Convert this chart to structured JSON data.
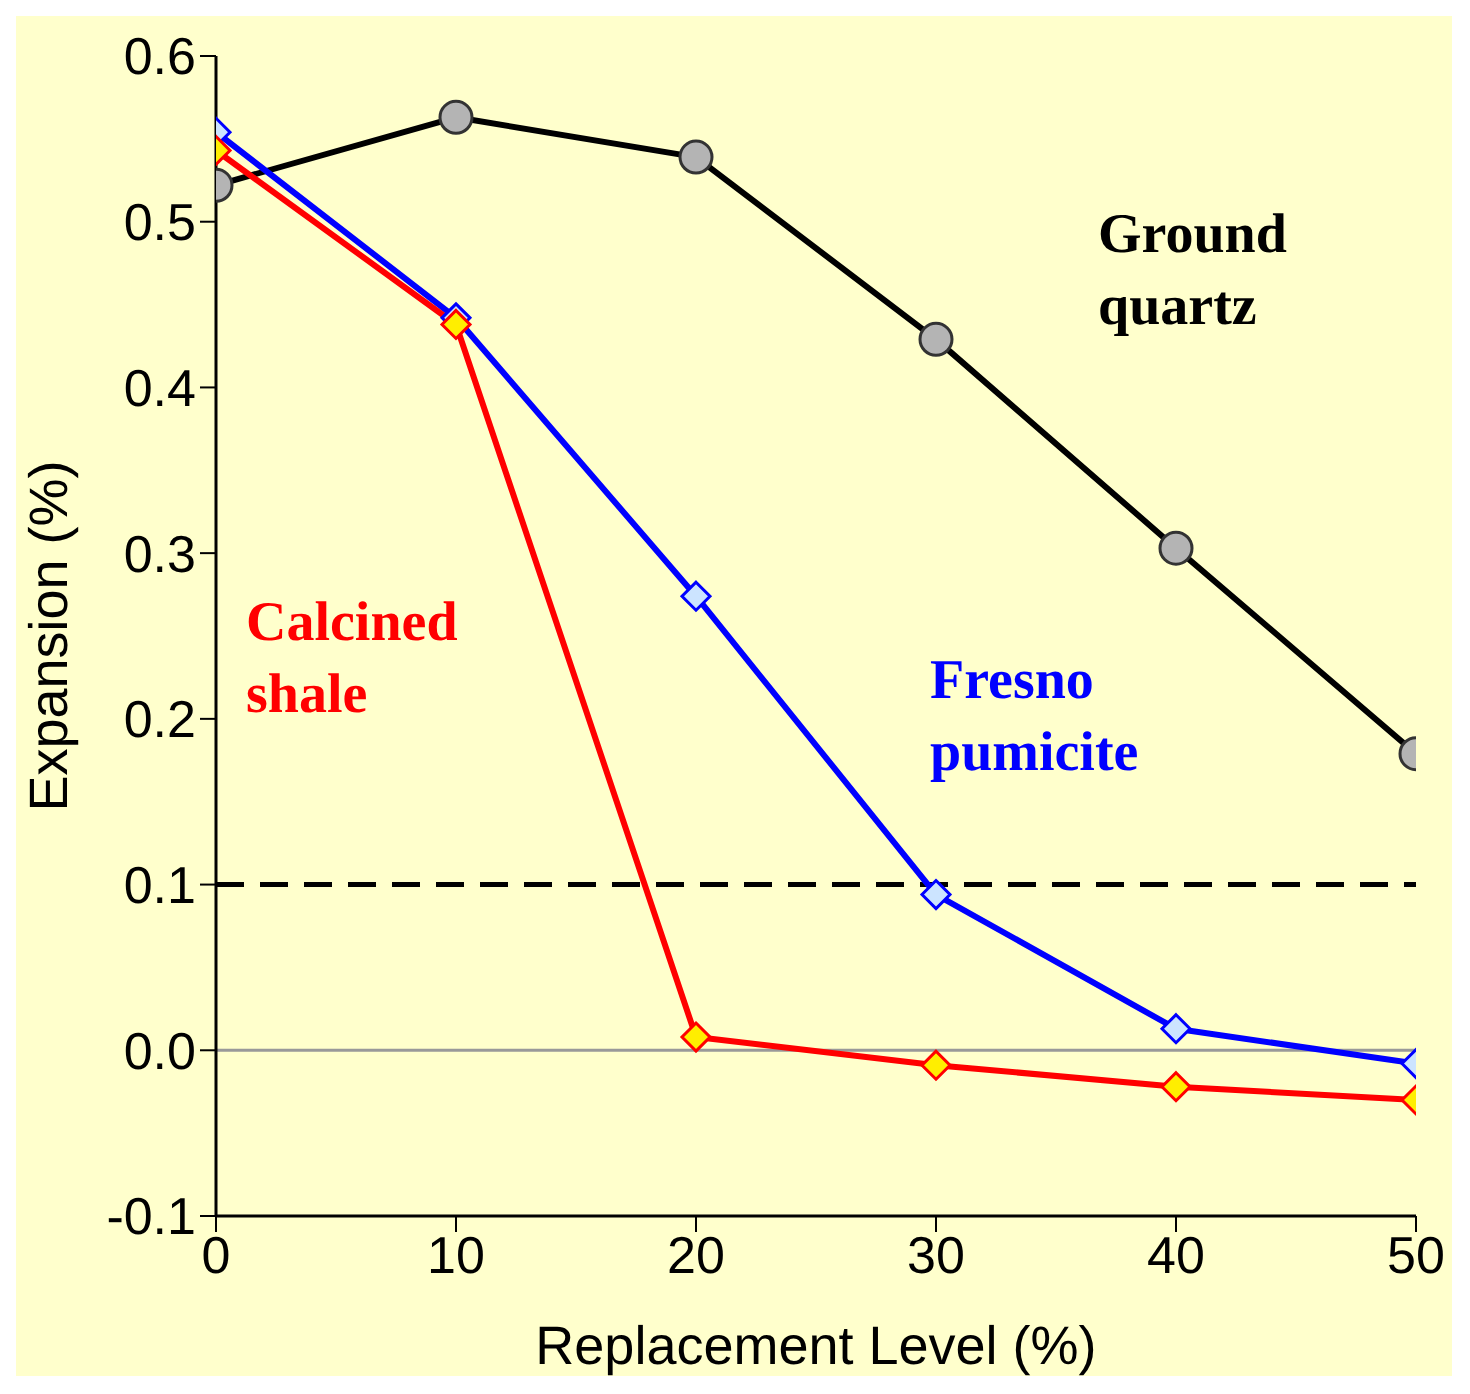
{
  "chart_data": {
    "type": "line",
    "xlabel": "Replacement Level (%)",
    "ylabel": "Expansion (%)",
    "x": [
      0,
      10,
      20,
      30,
      40,
      50
    ],
    "series": [
      {
        "name": "Ground quartz",
        "color": "#000000",
        "marker": "circle",
        "values": [
          0.522,
          0.563,
          0.539,
          0.429,
          0.303,
          0.179
        ]
      },
      {
        "name": "Fresno pumicite",
        "color": "#0000ff",
        "marker": "diamond",
        "values": [
          0.554,
          0.442,
          0.274,
          0.094,
          0.013,
          -0.008
        ]
      },
      {
        "name": "Calcined shale",
        "color": "#ff0000",
        "marker": "diamond",
        "values": [
          0.543,
          0.438,
          0.008,
          -0.009,
          -0.022,
          -0.03
        ]
      }
    ],
    "xlim": [
      0,
      50
    ],
    "xticks": [
      0,
      10,
      20,
      30,
      40,
      50
    ],
    "ylim": [
      -0.1,
      0.6
    ],
    "yticks": [
      -0.1,
      {
        "value": 0,
        "label": "0.0"
      },
      0.1,
      0.2,
      0.3,
      0.4,
      0.5,
      0.6
    ],
    "ref_lines": [
      {
        "axis": "y",
        "value": 0.1,
        "color": "#000000",
        "line_style": "dashed"
      },
      {
        "axis": "y",
        "value": 0,
        "color": "#999999",
        "line_style": "solid"
      }
    ],
    "grid": false,
    "legend": false,
    "line_style": "solid"
  }
}
